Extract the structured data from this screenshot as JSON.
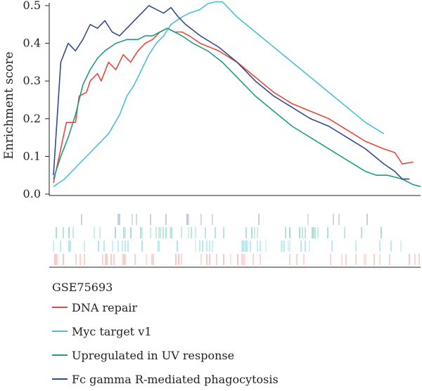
{
  "chart_data": {
    "type": "line",
    "title": "",
    "xlabel": "",
    "ylabel": "Enrichment score",
    "ylim": [
      0,
      0.5
    ],
    "yticks": [
      "0.0",
      "0.1",
      "0.2",
      "0.3",
      "0.4",
      "0.5"
    ],
    "grid": false,
    "legend_title": "GSE75693",
    "legend_position": "bottom-left",
    "series": [
      {
        "name": "DNA repair",
        "color": "#e8483a",
        "points": [
          [
            0.0,
            0.03
          ],
          [
            0.02,
            0.12
          ],
          [
            0.035,
            0.19
          ],
          [
            0.06,
            0.19
          ],
          [
            0.07,
            0.26
          ],
          [
            0.09,
            0.27
          ],
          [
            0.1,
            0.3
          ],
          [
            0.12,
            0.32
          ],
          [
            0.13,
            0.3
          ],
          [
            0.15,
            0.35
          ],
          [
            0.17,
            0.33
          ],
          [
            0.19,
            0.37
          ],
          [
            0.21,
            0.35
          ],
          [
            0.23,
            0.38
          ],
          [
            0.25,
            0.4
          ],
          [
            0.27,
            0.41
          ],
          [
            0.29,
            0.43
          ],
          [
            0.31,
            0.44
          ],
          [
            0.33,
            0.43
          ],
          [
            0.35,
            0.43
          ],
          [
            0.37,
            0.42
          ],
          [
            0.4,
            0.4
          ],
          [
            0.45,
            0.38
          ],
          [
            0.5,
            0.35
          ],
          [
            0.55,
            0.31
          ],
          [
            0.6,
            0.27
          ],
          [
            0.65,
            0.24
          ],
          [
            0.7,
            0.22
          ],
          [
            0.75,
            0.2
          ],
          [
            0.8,
            0.17
          ],
          [
            0.85,
            0.14
          ],
          [
            0.9,
            0.12
          ],
          [
            0.93,
            0.11
          ],
          [
            0.95,
            0.08
          ],
          [
            0.98,
            0.085
          ]
        ]
      },
      {
        "name": "Myc target v1",
        "color": "#4bbfd6",
        "points": [
          [
            0.0,
            0.02
          ],
          [
            0.03,
            0.04
          ],
          [
            0.06,
            0.07
          ],
          [
            0.09,
            0.1
          ],
          [
            0.12,
            0.13
          ],
          [
            0.15,
            0.16
          ],
          [
            0.18,
            0.21
          ],
          [
            0.2,
            0.26
          ],
          [
            0.22,
            0.29
          ],
          [
            0.24,
            0.33
          ],
          [
            0.26,
            0.37
          ],
          [
            0.28,
            0.4
          ],
          [
            0.3,
            0.42
          ],
          [
            0.32,
            0.45
          ],
          [
            0.35,
            0.47
          ],
          [
            0.37,
            0.48
          ],
          [
            0.4,
            0.49
          ],
          [
            0.42,
            0.505
          ],
          [
            0.44,
            0.51
          ],
          [
            0.46,
            0.51
          ],
          [
            0.5,
            0.47
          ],
          [
            0.55,
            0.43
          ],
          [
            0.6,
            0.39
          ],
          [
            0.65,
            0.35
          ],
          [
            0.7,
            0.31
          ],
          [
            0.75,
            0.27
          ],
          [
            0.8,
            0.23
          ],
          [
            0.85,
            0.19
          ],
          [
            0.9,
            0.16
          ]
        ]
      },
      {
        "name": "Upregulated in UV response",
        "color": "#1f9e7e",
        "points": [
          [
            0.0,
            0.04
          ],
          [
            0.02,
            0.1
          ],
          [
            0.04,
            0.15
          ],
          [
            0.06,
            0.21
          ],
          [
            0.08,
            0.29
          ],
          [
            0.1,
            0.33
          ],
          [
            0.12,
            0.36
          ],
          [
            0.14,
            0.38
          ],
          [
            0.17,
            0.4
          ],
          [
            0.2,
            0.41
          ],
          [
            0.23,
            0.41
          ],
          [
            0.25,
            0.42
          ],
          [
            0.27,
            0.42
          ],
          [
            0.29,
            0.43
          ],
          [
            0.31,
            0.44
          ],
          [
            0.33,
            0.43
          ],
          [
            0.35,
            0.42
          ],
          [
            0.38,
            0.4
          ],
          [
            0.42,
            0.38
          ],
          [
            0.46,
            0.35
          ],
          [
            0.5,
            0.31
          ],
          [
            0.55,
            0.26
          ],
          [
            0.6,
            0.22
          ],
          [
            0.65,
            0.18
          ],
          [
            0.7,
            0.15
          ],
          [
            0.75,
            0.12
          ],
          [
            0.8,
            0.09
          ],
          [
            0.85,
            0.06
          ],
          [
            0.88,
            0.05
          ],
          [
            0.91,
            0.05
          ],
          [
            0.95,
            0.04
          ],
          [
            0.98,
            0.025
          ],
          [
            1.0,
            0.02
          ]
        ]
      },
      {
        "name": "Fc gamma R-mediated phagocytosis",
        "color": "#344b8c",
        "points": [
          [
            0.0,
            0.05
          ],
          [
            0.02,
            0.35
          ],
          [
            0.04,
            0.4
          ],
          [
            0.06,
            0.38
          ],
          [
            0.08,
            0.41
          ],
          [
            0.1,
            0.45
          ],
          [
            0.12,
            0.44
          ],
          [
            0.14,
            0.46
          ],
          [
            0.16,
            0.43
          ],
          [
            0.18,
            0.42
          ],
          [
            0.2,
            0.44
          ],
          [
            0.22,
            0.46
          ],
          [
            0.24,
            0.48
          ],
          [
            0.26,
            0.5
          ],
          [
            0.28,
            0.49
          ],
          [
            0.3,
            0.48
          ],
          [
            0.32,
            0.495
          ],
          [
            0.34,
            0.47
          ],
          [
            0.36,
            0.45
          ],
          [
            0.4,
            0.42
          ],
          [
            0.45,
            0.39
          ],
          [
            0.5,
            0.35
          ],
          [
            0.55,
            0.3
          ],
          [
            0.6,
            0.26
          ],
          [
            0.65,
            0.23
          ],
          [
            0.7,
            0.2
          ],
          [
            0.75,
            0.18
          ],
          [
            0.8,
            0.15
          ],
          [
            0.85,
            0.12
          ],
          [
            0.9,
            0.08
          ],
          [
            0.93,
            0.06
          ],
          [
            0.95,
            0.04
          ],
          [
            0.97,
            0.04
          ]
        ]
      }
    ],
    "hit_tracks": [
      {
        "name": "Fc gamma R-mediated phagocytosis",
        "color": "#6f7fb5",
        "density": 0.25
      },
      {
        "name": "Upregulated in UV response",
        "color": "#3fb899",
        "density": 0.5
      },
      {
        "name": "Myc target v1",
        "color": "#5cc9df",
        "density": 0.45
      },
      {
        "name": "DNA repair",
        "color": "#f08a7e",
        "density": 0.5
      }
    ]
  }
}
